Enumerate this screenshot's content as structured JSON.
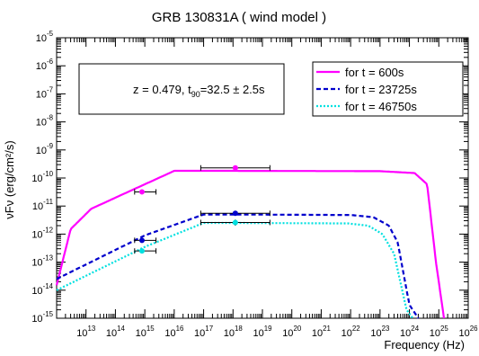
{
  "chart_data": {
    "type": "line",
    "title": "GRB 130831A ( wind model )",
    "xlabel": "Frequency (Hz)",
    "ylabel": "νFν (erg/cm²/s)",
    "x_scale": "log",
    "y_scale": "log",
    "xlim": [
      1000000000000.0,
      1e+26
    ],
    "ylim": [
      1e-15,
      1e-05
    ],
    "x_ticks": [
      "10^13",
      "10^14",
      "10^15",
      "10^16",
      "10^17",
      "10^18",
      "10^19",
      "10^20",
      "10^21",
      "10^22",
      "10^23",
      "10^24",
      "10^25",
      "10^26"
    ],
    "y_ticks": [
      "10^-15",
      "10^-14",
      "10^-13",
      "10^-12",
      "10^-11",
      "10^-10",
      "10^-9",
      "10^-8",
      "10^-7",
      "10^-6",
      "10^-5"
    ],
    "grid": false,
    "annotation": "z = 0.479, t90=32.5 ± 2.5s",
    "legend_position": "top-right",
    "series": [
      {
        "name": "for t = 600s",
        "color": "#ff00ff",
        "style": "solid",
        "x": [
          1000000000000.0,
          3000000000000.0,
          15000000000000.0,
          1e+16,
          1e+18,
          1e+23,
          1.5e+24,
          4e+24,
          8e+24,
          1.5e+25
        ],
        "y": [
          1.5e-14,
          1.5e-12,
          8e-12,
          1.8e-10,
          1.8e-10,
          1.75e-10,
          1.5e-10,
          6e-11,
          1e-13,
          1e-15
        ]
      },
      {
        "name": "for t = 23725s",
        "color": "#0000cc",
        "style": "dashed",
        "x": [
          1000000000000.0,
          1000000000000000.0,
          1e+17,
          1e+18,
          1e+22,
          6e+22,
          2e+23,
          4e+23,
          1e+24,
          2e+24
        ],
        "y": [
          2.5e-14,
          9e-13,
          5e-12,
          5e-12,
          4.8e-12,
          4e-12,
          2e-12,
          5e-13,
          3e-15,
          1e-15
        ]
      },
      {
        "name": "for t = 46750s",
        "color": "#00e0e0",
        "style": "dotted",
        "x": [
          1000000000000.0,
          1000000000000000.0,
          1e+17,
          1e+18,
          8e+21,
          4e+22,
          1.2e+23,
          3e+23,
          8e+23,
          1.3e+24
        ],
        "y": [
          1e-14,
          3.5e-13,
          2.5e-12,
          2.5e-12,
          2.4e-12,
          2e-12,
          1e-12,
          2e-13,
          2e-15,
          1e-15
        ]
      }
    ],
    "data_points": [
      {
        "series": "for t = 600s",
        "x": 800000000000000.0,
        "y": 3.2e-11,
        "xerr": [
          450000000000000.0,
          2400000000000000.0
        ],
        "color": "#ff00ff"
      },
      {
        "series": "for t = 600s",
        "x": 1.2e+18,
        "y": 2.3e-10,
        "xerr": [
          8e+16,
          1.8e+19
        ],
        "color": "#ff00ff"
      },
      {
        "series": "for t = 23725s",
        "x": 800000000000000.0,
        "y": 6e-13,
        "xerr": [
          450000000000000.0,
          2400000000000000.0
        ],
        "color": "#0000cc"
      },
      {
        "series": "for t = 23725s",
        "x": 1.2e+18,
        "y": 5.5e-12,
        "xerr": [
          8e+16,
          1.8e+19
        ],
        "color": "#0000cc"
      },
      {
        "series": "for t = 46750s",
        "x": 800000000000000.0,
        "y": 2.5e-13,
        "xerr": [
          450000000000000.0,
          2400000000000000.0
        ],
        "color": "#00e0e0"
      },
      {
        "series": "for t = 46750s",
        "x": 1.2e+18,
        "y": 2.6e-12,
        "yerr": [
          2e-12,
          3.3e-12
        ],
        "xerr": [
          8e+16,
          1.8e+19
        ],
        "color": "#00e0e0"
      }
    ]
  }
}
